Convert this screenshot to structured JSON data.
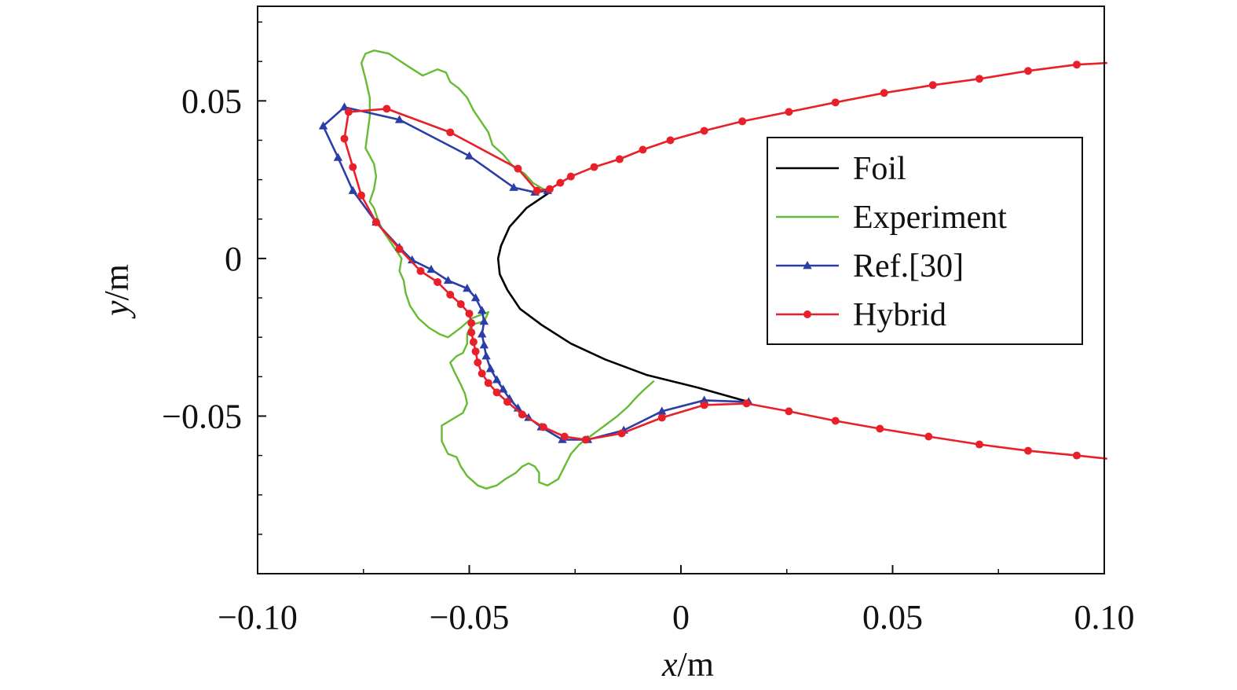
{
  "chart_data": {
    "type": "line",
    "title": "",
    "xlabel": {
      "var": "x",
      "unit": "/m"
    },
    "ylabel": {
      "var": "y",
      "unit": "/m"
    },
    "xlim": [
      -0.1,
      0.1
    ],
    "ylim": [
      -0.1,
      0.08
    ],
    "x_ticks": [
      {
        "value": -0.1,
        "label": "−0.10"
      },
      {
        "value": -0.05,
        "label": "−0.05"
      },
      {
        "value": 0,
        "label": "0"
      },
      {
        "value": 0.05,
        "label": "0.05"
      },
      {
        "value": 0.1,
        "label": "0.10"
      }
    ],
    "y_ticks": [
      {
        "value": -0.05,
        "label": "−0.05"
      },
      {
        "value": 0,
        "label": "0"
      },
      {
        "value": 0.05,
        "label": "0.05"
      }
    ],
    "x_minor_step": 0.025,
    "y_minor_step": 0.0125,
    "grid": false,
    "legend_position": "center-right",
    "series": [
      {
        "name": "Foil",
        "color": "#000000",
        "marker": "none",
        "points": [
          [
            -0.031,
            0.021
          ],
          [
            -0.0365,
            0.016
          ],
          [
            -0.0405,
            0.01
          ],
          [
            -0.0425,
            0.004
          ],
          [
            -0.0432,
            0.0
          ],
          [
            -0.0428,
            -0.005
          ],
          [
            -0.041,
            -0.01
          ],
          [
            -0.038,
            -0.016
          ],
          [
            -0.033,
            -0.021
          ],
          [
            -0.026,
            -0.027
          ],
          [
            -0.018,
            -0.032
          ],
          [
            -0.008,
            -0.037
          ],
          [
            0.004,
            -0.041
          ],
          [
            0.016,
            -0.0455
          ]
        ]
      },
      {
        "name": "Experiment",
        "color": "#66bb33",
        "marker": "none",
        "points": [
          [
            -0.0325,
            0.022
          ],
          [
            -0.035,
            0.024
          ],
          [
            -0.037,
            0.027
          ],
          [
            -0.0395,
            0.029
          ],
          [
            -0.042,
            0.033
          ],
          [
            -0.0445,
            0.036
          ],
          [
            -0.0455,
            0.04
          ],
          [
            -0.048,
            0.045
          ],
          [
            -0.049,
            0.047
          ],
          [
            -0.0505,
            0.051
          ],
          [
            -0.0525,
            0.054
          ],
          [
            -0.0545,
            0.056
          ],
          [
            -0.0555,
            0.059
          ],
          [
            -0.0575,
            0.06
          ],
          [
            -0.061,
            0.058
          ],
          [
            -0.0645,
            0.061
          ],
          [
            -0.069,
            0.065
          ],
          [
            -0.0725,
            0.066
          ],
          [
            -0.0745,
            0.065
          ],
          [
            -0.0755,
            0.062
          ],
          [
            -0.0745,
            0.057
          ],
          [
            -0.0735,
            0.051
          ],
          [
            -0.0735,
            0.045
          ],
          [
            -0.074,
            0.04
          ],
          [
            -0.0745,
            0.035
          ],
          [
            -0.0725,
            0.03
          ],
          [
            -0.072,
            0.026
          ],
          [
            -0.0725,
            0.022
          ],
          [
            -0.0735,
            0.018
          ],
          [
            -0.0725,
            0.016
          ],
          [
            -0.0715,
            0.012
          ],
          [
            -0.0705,
            0.009
          ],
          [
            -0.069,
            0.006
          ],
          [
            -0.0675,
            0.003
          ],
          [
            -0.066,
            0.0
          ],
          [
            -0.0665,
            -0.004
          ],
          [
            -0.0655,
            -0.007
          ],
          [
            -0.065,
            -0.011
          ],
          [
            -0.064,
            -0.015
          ],
          [
            -0.062,
            -0.019
          ],
          [
            -0.0595,
            -0.022
          ],
          [
            -0.057,
            -0.024
          ],
          [
            -0.055,
            -0.025
          ],
          [
            -0.052,
            -0.022
          ],
          [
            -0.0495,
            -0.019
          ],
          [
            -0.0475,
            -0.018
          ],
          [
            -0.0455,
            -0.017
          ],
          [
            -0.0465,
            -0.02
          ],
          [
            -0.0495,
            -0.021
          ],
          [
            -0.0505,
            -0.024
          ],
          [
            -0.0505,
            -0.027
          ],
          [
            -0.0515,
            -0.03
          ],
          [
            -0.053,
            -0.031
          ],
          [
            -0.0545,
            -0.033
          ],
          [
            -0.0535,
            -0.036
          ],
          [
            -0.052,
            -0.04
          ],
          [
            -0.051,
            -0.043
          ],
          [
            -0.0505,
            -0.046
          ],
          [
            -0.0515,
            -0.049
          ],
          [
            -0.054,
            -0.051
          ],
          [
            -0.0565,
            -0.053
          ],
          [
            -0.0565,
            -0.058
          ],
          [
            -0.055,
            -0.062
          ],
          [
            -0.053,
            -0.063
          ],
          [
            -0.052,
            -0.066
          ],
          [
            -0.0505,
            -0.069
          ],
          [
            -0.048,
            -0.072
          ],
          [
            -0.046,
            -0.073
          ],
          [
            -0.0435,
            -0.072
          ],
          [
            -0.0415,
            -0.07
          ],
          [
            -0.039,
            -0.068
          ],
          [
            -0.0375,
            -0.066
          ],
          [
            -0.036,
            -0.065
          ],
          [
            -0.0345,
            -0.066
          ],
          [
            -0.0335,
            -0.068
          ],
          [
            -0.0335,
            -0.071
          ],
          [
            -0.0315,
            -0.072
          ],
          [
            -0.029,
            -0.07
          ],
          [
            -0.0275,
            -0.066
          ],
          [
            -0.026,
            -0.062
          ],
          [
            -0.024,
            -0.059
          ],
          [
            -0.021,
            -0.056
          ],
          [
            -0.018,
            -0.053
          ],
          [
            -0.015,
            -0.05
          ],
          [
            -0.0125,
            -0.047
          ],
          [
            -0.0105,
            -0.044
          ],
          [
            -0.009,
            -0.042
          ],
          [
            -0.0065,
            -0.039
          ]
        ]
      },
      {
        "name": "Ref.[30]",
        "color": "#2b3ea8",
        "marker": "triangle",
        "points": [
          [
            -0.0315,
            0.0215
          ],
          [
            -0.0345,
            0.021
          ],
          [
            -0.0395,
            0.0225
          ],
          [
            -0.05,
            0.0325
          ],
          [
            -0.0665,
            0.044
          ],
          [
            -0.0795,
            0.048
          ],
          [
            -0.0845,
            0.042
          ],
          [
            -0.081,
            0.032
          ],
          [
            -0.0775,
            0.0215
          ],
          [
            -0.072,
            0.0115
          ],
          [
            -0.0665,
            0.0035
          ],
          [
            -0.0635,
            -0.0005
          ],
          [
            -0.059,
            -0.0035
          ],
          [
            -0.055,
            -0.007
          ],
          [
            -0.0505,
            -0.0095
          ],
          [
            -0.0485,
            -0.0125
          ],
          [
            -0.047,
            -0.0165
          ],
          [
            -0.0465,
            -0.02
          ],
          [
            -0.047,
            -0.024
          ],
          [
            -0.0465,
            -0.0275
          ],
          [
            -0.046,
            -0.031
          ],
          [
            -0.045,
            -0.035
          ],
          [
            -0.0435,
            -0.0385
          ],
          [
            -0.042,
            -0.0415
          ],
          [
            -0.0405,
            -0.0445
          ],
          [
            -0.0385,
            -0.0475
          ],
          [
            -0.036,
            -0.0505
          ],
          [
            -0.033,
            -0.0535
          ],
          [
            -0.028,
            -0.0575
          ],
          [
            -0.022,
            -0.0575
          ],
          [
            -0.0135,
            -0.0545
          ],
          [
            -0.0045,
            -0.0485
          ],
          [
            0.0055,
            -0.045
          ],
          [
            0.016,
            -0.0455
          ]
        ]
      },
      {
        "name": "Hybrid",
        "color": "#e8202a",
        "marker": "circle",
        "points": [
          [
            0.1005,
            0.062
          ],
          [
            0.0935,
            0.0615
          ],
          [
            0.082,
            0.0595
          ],
          [
            0.0705,
            0.057
          ],
          [
            0.0595,
            0.055
          ],
          [
            0.048,
            0.0525
          ],
          [
            0.0365,
            0.0495
          ],
          [
            0.0255,
            0.0465
          ],
          [
            0.0145,
            0.0435
          ],
          [
            0.0055,
            0.0405
          ],
          [
            -0.0025,
            0.0375
          ],
          [
            -0.009,
            0.0345
          ],
          [
            -0.0145,
            0.0315
          ],
          [
            -0.0205,
            0.029
          ],
          [
            -0.026,
            0.026
          ],
          [
            -0.0285,
            0.024
          ],
          [
            -0.031,
            0.022
          ],
          [
            -0.034,
            0.0215
          ],
          [
            -0.0385,
            0.0285
          ],
          [
            -0.0545,
            0.04
          ],
          [
            -0.0695,
            0.0475
          ],
          [
            -0.0785,
            0.0465
          ],
          [
            -0.0795,
            0.038
          ],
          [
            -0.0775,
            0.029
          ],
          [
            -0.0755,
            0.02
          ],
          [
            -0.072,
            0.0115
          ],
          [
            -0.0665,
            0.003
          ],
          [
            -0.0615,
            -0.004
          ],
          [
            -0.0575,
            -0.0075
          ],
          [
            -0.0545,
            -0.0115
          ],
          [
            -0.052,
            -0.0145
          ],
          [
            -0.05,
            -0.0175
          ],
          [
            -0.0495,
            -0.0205
          ],
          [
            -0.0495,
            -0.0235
          ],
          [
            -0.049,
            -0.0265
          ],
          [
            -0.0485,
            -0.0295
          ],
          [
            -0.048,
            -0.033
          ],
          [
            -0.047,
            -0.0365
          ],
          [
            -0.0455,
            -0.0395
          ],
          [
            -0.0435,
            -0.0425
          ],
          [
            -0.041,
            -0.0455
          ],
          [
            -0.0375,
            -0.0495
          ],
          [
            -0.0325,
            -0.0535
          ],
          [
            -0.0275,
            -0.0565
          ],
          [
            -0.0225,
            -0.0575
          ],
          [
            -0.014,
            -0.0555
          ],
          [
            -0.0045,
            -0.0505
          ],
          [
            0.0055,
            -0.0465
          ],
          [
            0.0155,
            -0.046
          ],
          [
            0.0255,
            -0.0485
          ],
          [
            0.0365,
            -0.0515
          ],
          [
            0.047,
            -0.054
          ],
          [
            0.0585,
            -0.0565
          ],
          [
            0.0705,
            -0.059
          ],
          [
            0.082,
            -0.061
          ],
          [
            0.0935,
            -0.0625
          ],
          [
            0.1005,
            -0.0635
          ]
        ],
        "markers_at": [
          [
            0.0935,
            0.0615
          ],
          [
            0.082,
            0.0595
          ],
          [
            0.0705,
            0.057
          ],
          [
            0.0595,
            0.055
          ],
          [
            0.048,
            0.0525
          ],
          [
            0.0365,
            0.0495
          ],
          [
            0.0255,
            0.0465
          ],
          [
            0.0145,
            0.0435
          ],
          [
            0.0055,
            0.0405
          ],
          [
            -0.0025,
            0.0375
          ],
          [
            -0.009,
            0.0345
          ],
          [
            -0.0145,
            0.0315
          ],
          [
            -0.0205,
            0.029
          ],
          [
            -0.026,
            0.026
          ],
          [
            -0.0285,
            0.024
          ],
          [
            -0.031,
            0.022
          ],
          [
            -0.034,
            0.0215
          ],
          [
            -0.0385,
            0.0285
          ],
          [
            -0.0545,
            0.04
          ],
          [
            -0.0695,
            0.0475
          ],
          [
            -0.0785,
            0.0465
          ],
          [
            -0.0795,
            0.038
          ],
          [
            -0.0775,
            0.029
          ],
          [
            -0.0755,
            0.02
          ],
          [
            -0.072,
            0.0115
          ],
          [
            -0.0665,
            0.003
          ],
          [
            -0.0615,
            -0.004
          ],
          [
            -0.0575,
            -0.0075
          ],
          [
            -0.0545,
            -0.0115
          ],
          [
            -0.052,
            -0.0145
          ],
          [
            -0.05,
            -0.0175
          ],
          [
            -0.0495,
            -0.0205
          ],
          [
            -0.0495,
            -0.0235
          ],
          [
            -0.049,
            -0.0265
          ],
          [
            -0.0485,
            -0.0295
          ],
          [
            -0.048,
            -0.033
          ],
          [
            -0.047,
            -0.0365
          ],
          [
            -0.0455,
            -0.0395
          ],
          [
            -0.0435,
            -0.0425
          ],
          [
            -0.041,
            -0.0455
          ],
          [
            -0.0375,
            -0.0495
          ],
          [
            -0.0325,
            -0.0535
          ],
          [
            -0.0275,
            -0.0565
          ],
          [
            -0.0225,
            -0.0575
          ],
          [
            -0.014,
            -0.0555
          ],
          [
            -0.0045,
            -0.0505
          ],
          [
            0.0055,
            -0.0465
          ],
          [
            0.0155,
            -0.046
          ],
          [
            0.0255,
            -0.0485
          ],
          [
            0.0365,
            -0.0515
          ],
          [
            0.047,
            -0.054
          ],
          [
            0.0585,
            -0.0565
          ],
          [
            0.0705,
            -0.059
          ],
          [
            0.082,
            -0.061
          ],
          [
            0.0935,
            -0.0625
          ]
        ]
      }
    ],
    "legend": [
      {
        "label": "Foil",
        "color": "#000000",
        "marker": "none"
      },
      {
        "label": "Experiment",
        "color": "#66bb33",
        "marker": "none"
      },
      {
        "label": "Ref.[30]",
        "color": "#2b3ea8",
        "marker": "triangle"
      },
      {
        "label": "Hybrid",
        "color": "#e8202a",
        "marker": "circle"
      }
    ]
  }
}
